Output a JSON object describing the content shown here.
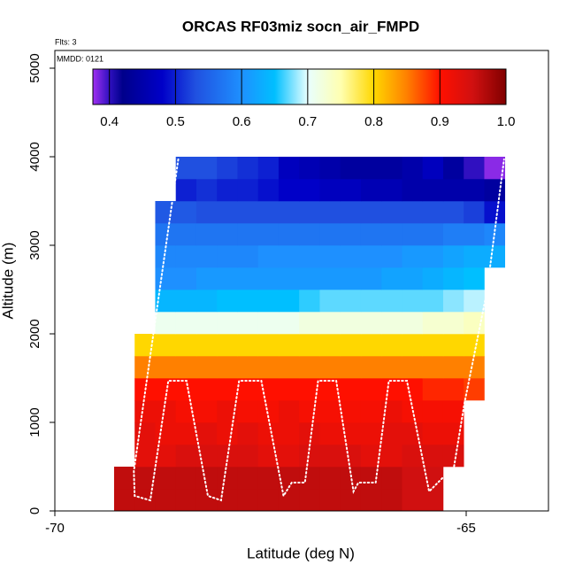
{
  "chart_data": {
    "type": "heatmap",
    "title": "ORCAS RF03miz socn_air_FMPD",
    "flights_note": "Flts: 3",
    "date_note": "MMDD: 0121",
    "xlabel": "Latitude (deg N)",
    "ylabel": "Altitude (m)",
    "xlim": [
      -70,
      -64
    ],
    "ylim": [
      0,
      5200
    ],
    "xticks": [
      -70,
      -65
    ],
    "yticks": [
      0,
      1000,
      2000,
      3000,
      4000,
      5000
    ],
    "xbins": [
      -69.28,
      -69.03,
      -68.78,
      -68.53,
      -68.28,
      -68.03,
      -67.78,
      -67.53,
      -67.28,
      -67.03,
      -66.78,
      -66.53,
      -66.28,
      -66.03,
      -65.78,
      -65.53,
      -65.28,
      -65.03,
      -64.78,
      -64.53
    ],
    "ybins": [
      0,
      250,
      500,
      750,
      1000,
      1250,
      1500,
      1750,
      2000,
      2250,
      2500,
      2750,
      3000,
      3250,
      3500,
      3750,
      4000
    ],
    "values": [
      [
        0.96,
        0.96,
        0.96,
        0.96,
        0.96,
        0.96,
        0.96,
        0.96,
        0.96,
        0.96,
        0.96,
        0.96,
        0.96,
        0.96,
        0.95,
        0.95,
        null,
        null,
        null
      ],
      [
        0.96,
        0.96,
        0.96,
        0.96,
        0.96,
        0.96,
        0.96,
        0.96,
        0.96,
        0.96,
        0.96,
        0.96,
        0.96,
        0.96,
        0.95,
        0.95,
        null,
        null,
        null
      ],
      [
        null,
        0.93,
        0.93,
        0.94,
        0.94,
        0.94,
        0.94,
        0.93,
        0.93,
        0.94,
        0.94,
        0.94,
        0.93,
        0.93,
        0.94,
        0.94,
        0.94,
        null,
        null
      ],
      [
        null,
        0.93,
        0.92,
        0.92,
        0.93,
        0.92,
        0.93,
        0.92,
        0.92,
        0.93,
        0.92,
        0.92,
        0.92,
        0.93,
        0.93,
        0.92,
        0.92,
        null,
        null
      ],
      [
        null,
        0.92,
        0.92,
        0.91,
        0.91,
        0.92,
        0.91,
        0.91,
        0.92,
        0.91,
        0.91,
        0.91,
        0.91,
        0.92,
        0.91,
        0.91,
        0.91,
        null,
        null
      ],
      [
        null,
        0.9,
        0.9,
        0.9,
        0.9,
        0.9,
        0.9,
        0.9,
        0.9,
        0.9,
        0.9,
        0.9,
        0.9,
        0.9,
        0.9,
        0.89,
        0.89,
        0.88,
        null
      ],
      [
        null,
        0.85,
        0.85,
        0.85,
        0.85,
        0.85,
        0.85,
        0.85,
        0.85,
        0.85,
        0.85,
        0.85,
        0.85,
        0.85,
        0.85,
        0.85,
        0.85,
        0.85,
        null
      ],
      [
        null,
        0.8,
        0.8,
        0.8,
        0.8,
        0.8,
        0.8,
        0.8,
        0.8,
        0.8,
        0.8,
        0.8,
        0.8,
        0.8,
        0.8,
        0.8,
        0.8,
        0.8,
        null
      ],
      [
        null,
        null,
        0.71,
        0.71,
        0.71,
        0.71,
        0.71,
        0.71,
        0.71,
        0.72,
        0.72,
        0.72,
        0.72,
        0.72,
        0.72,
        0.73,
        0.73,
        0.74,
        null
      ],
      [
        null,
        null,
        0.64,
        0.64,
        0.64,
        0.65,
        0.65,
        0.65,
        0.65,
        0.66,
        0.67,
        0.67,
        0.67,
        0.67,
        0.67,
        0.67,
        0.68,
        0.69,
        null
      ],
      [
        null,
        null,
        0.6,
        0.6,
        0.61,
        0.61,
        0.61,
        0.61,
        0.61,
        0.61,
        0.61,
        0.61,
        0.61,
        0.62,
        0.62,
        0.63,
        0.64,
        0.65,
        null
      ],
      [
        null,
        null,
        0.59,
        0.59,
        0.59,
        0.59,
        0.59,
        0.6,
        0.6,
        0.6,
        0.6,
        0.6,
        0.6,
        0.6,
        0.61,
        0.61,
        0.62,
        0.63,
        0.63
      ],
      [
        null,
        null,
        0.57,
        0.57,
        0.57,
        0.57,
        0.57,
        0.57,
        0.57,
        0.57,
        0.57,
        0.57,
        0.57,
        0.57,
        0.57,
        0.57,
        0.58,
        0.58,
        0.59
      ],
      [
        null,
        null,
        0.54,
        0.54,
        0.53,
        0.53,
        0.53,
        0.53,
        0.53,
        0.53,
        0.53,
        0.53,
        0.53,
        0.53,
        0.53,
        0.53,
        0.53,
        0.52,
        0.49
      ],
      [
        null,
        null,
        null,
        0.5,
        0.51,
        0.5,
        0.5,
        0.49,
        0.48,
        0.48,
        0.47,
        0.47,
        0.46,
        0.46,
        0.45,
        0.45,
        0.45,
        0.45,
        0.44
      ],
      [
        null,
        null,
        null,
        0.53,
        0.53,
        0.52,
        0.51,
        0.5,
        0.47,
        0.46,
        0.45,
        0.44,
        0.44,
        0.44,
        0.45,
        0.47,
        0.44,
        0.4,
        0.38
      ]
    ],
    "clim": [
      0.375,
      1.0
    ],
    "cticks": [
      0.4,
      0.5,
      0.6,
      0.7,
      0.8,
      0.9,
      {
        "value": 1,
        "label": "1.0"
      }
    ],
    "colorscale": [
      {
        "value": 0.375,
        "color": "#a030f0"
      },
      {
        "value": 0.4,
        "color": "#3010c0"
      },
      {
        "value": 0.42,
        "color": "#00008b"
      },
      {
        "value": 0.48,
        "color": "#0000c8"
      },
      {
        "value": 0.53,
        "color": "#2050e0"
      },
      {
        "value": 0.6,
        "color": "#1e90ff"
      },
      {
        "value": 0.65,
        "color": "#00bfff"
      },
      {
        "value": 0.7,
        "color": "#e8ffff"
      },
      {
        "value": 0.75,
        "color": "#ffffb0"
      },
      {
        "value": 0.8,
        "color": "#ffd700"
      },
      {
        "value": 0.85,
        "color": "#ff8000"
      },
      {
        "value": 0.9,
        "color": "#ff1000"
      },
      {
        "value": 0.95,
        "color": "#d01010"
      },
      {
        "value": 1.0,
        "color": "#800000"
      }
    ],
    "track": {
      "color": "#ffffff",
      "x": [
        -68.5,
        -69.04,
        -69.03,
        -68.84,
        -68.62,
        -68.4,
        -68.14,
        -67.98,
        -67.76,
        -67.49,
        -67.22,
        -67.12,
        -66.96,
        -66.8,
        -66.58,
        -66.37,
        -66.31,
        -66.1,
        -65.94,
        -65.72,
        -65.45,
        -65.29,
        -65.18,
        -65.02,
        -64.75,
        -64.54
      ],
      "y": [
        3970,
        450,
        170,
        120,
        1470,
        1470,
        170,
        120,
        1470,
        1470,
        170,
        320,
        320,
        1470,
        1470,
        220,
        320,
        320,
        1470,
        1470,
        220,
        370,
        320,
        1220,
        2470,
        3970
      ]
    }
  }
}
